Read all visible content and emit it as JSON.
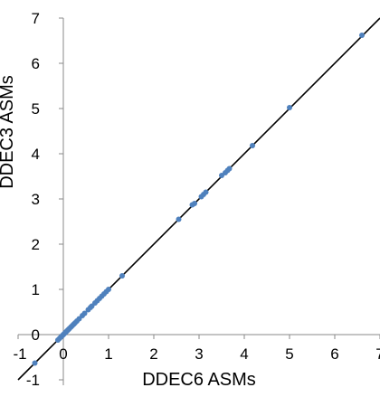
{
  "chart_data": {
    "type": "scatter",
    "title": "",
    "xlabel": "DDEC6 ASMs",
    "ylabel": "DDEC3 ASMs",
    "xlim": [
      -1,
      7
    ],
    "ylim": [
      -1,
      7
    ],
    "x_ticks": [
      "-1",
      "0",
      "1",
      "2",
      "3",
      "4",
      "5",
      "6",
      "7"
    ],
    "y_ticks": [
      "-1",
      "0",
      "1",
      "2",
      "3",
      "4",
      "5",
      "6",
      "7"
    ],
    "grid": false,
    "legend": "none",
    "reference_line": {
      "slope": 1,
      "intercept": 0,
      "color": "#000000"
    },
    "colors": {
      "points": "#4f81bd",
      "axes": "#888888",
      "line": "#000000"
    },
    "series": [
      {
        "name": "",
        "points": [
          [
            -0.63,
            -0.63
          ],
          [
            -0.12,
            -0.12
          ],
          [
            -0.08,
            -0.08
          ],
          [
            -0.05,
            -0.05
          ],
          [
            -0.02,
            -0.02
          ],
          [
            0.0,
            0.0
          ],
          [
            0.02,
            0.02
          ],
          [
            0.04,
            0.04
          ],
          [
            0.06,
            0.06
          ],
          [
            0.08,
            0.08
          ],
          [
            0.1,
            0.1
          ],
          [
            0.12,
            0.12
          ],
          [
            0.14,
            0.14
          ],
          [
            0.17,
            0.17
          ],
          [
            0.2,
            0.2
          ],
          [
            0.23,
            0.23
          ],
          [
            0.26,
            0.26
          ],
          [
            0.3,
            0.3
          ],
          [
            0.35,
            0.35
          ],
          [
            0.42,
            0.42
          ],
          [
            0.47,
            0.47
          ],
          [
            0.55,
            0.55
          ],
          [
            0.6,
            0.6
          ],
          [
            0.63,
            0.63
          ],
          [
            0.7,
            0.7
          ],
          [
            0.75,
            0.75
          ],
          [
            0.8,
            0.8
          ],
          [
            0.85,
            0.85
          ],
          [
            0.9,
            0.9
          ],
          [
            0.95,
            0.95
          ],
          [
            1.0,
            1.0
          ],
          [
            1.3,
            1.3
          ],
          [
            2.55,
            2.55
          ],
          [
            2.85,
            2.87
          ],
          [
            2.9,
            2.9
          ],
          [
            3.05,
            3.05
          ],
          [
            3.1,
            3.1
          ],
          [
            3.15,
            3.15
          ],
          [
            3.5,
            3.52
          ],
          [
            3.58,
            3.58
          ],
          [
            3.63,
            3.63
          ],
          [
            3.67,
            3.67
          ],
          [
            4.18,
            4.18
          ],
          [
            5.0,
            5.02
          ],
          [
            6.6,
            6.62
          ]
        ]
      }
    ]
  }
}
